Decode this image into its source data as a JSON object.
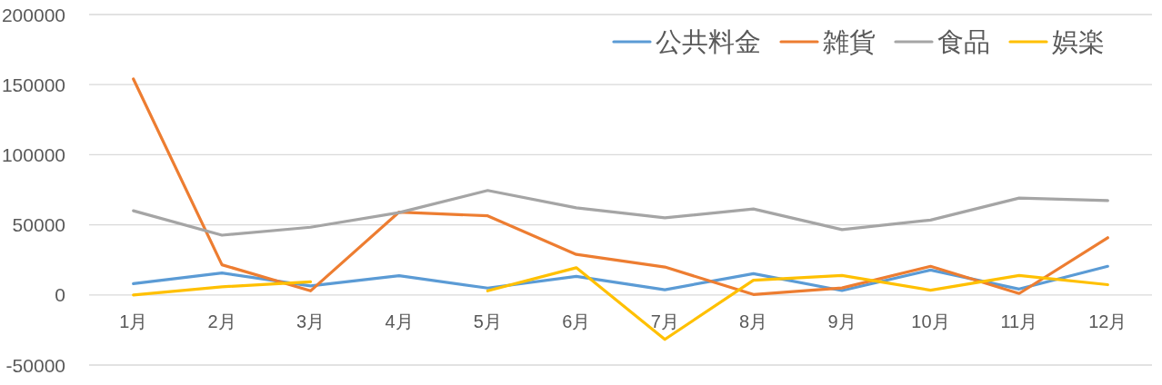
{
  "chart_data": {
    "type": "line",
    "categories": [
      "1月",
      "2月",
      "3月",
      "4月",
      "5月",
      "6月",
      "7月",
      "8月",
      "9月",
      "10月",
      "11月",
      "12月"
    ],
    "ylim": [
      -50000,
      200000
    ],
    "yticks": [
      -50000,
      0,
      50000,
      100000,
      150000,
      200000
    ],
    "grid": "y",
    "legend": "top right",
    "marker": "none",
    "line_style": "solid",
    "series": [
      {
        "name": "公共料金",
        "color": "#5b9bd5",
        "values": [
          8000,
          15700,
          6400,
          13700,
          4900,
          13200,
          3700,
          15200,
          3100,
          17800,
          4200,
          20400
        ]
      },
      {
        "name": "雑貨",
        "color": "#ed7d31",
        "values": [
          154000,
          21500,
          2900,
          59100,
          56400,
          28900,
          19900,
          300,
          5000,
          20400,
          1000,
          40800
        ]
      },
      {
        "name": "食品",
        "color": "#a5a5a5",
        "values": [
          60000,
          42600,
          48300,
          58700,
          74500,
          62100,
          55000,
          61300,
          46600,
          53400,
          69100,
          67300
        ]
      },
      {
        "name": "娯楽",
        "color": "#ffc000",
        "values": [
          0,
          5800,
          9300,
          null,
          2900,
          19400,
          -31700,
          10500,
          13900,
          3400,
          13900,
          7300
        ]
      }
    ]
  }
}
